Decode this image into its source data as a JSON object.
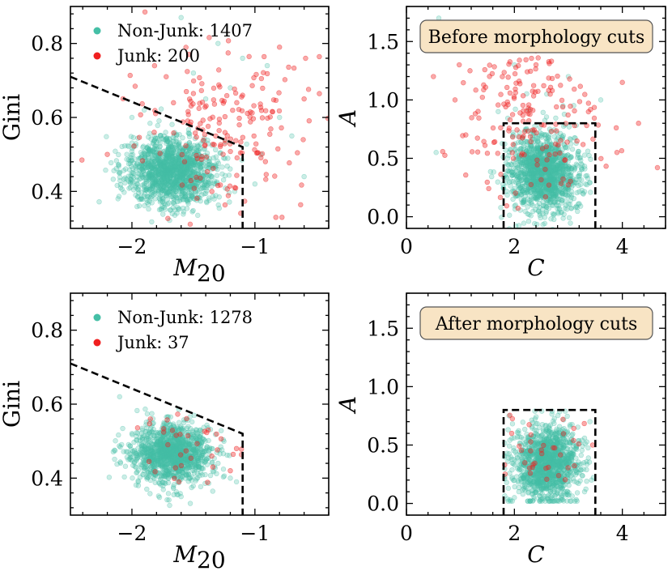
{
  "colors": {
    "non_junk": "#45bfa6",
    "junk": "#f02020",
    "badge_fill": "#f8e4c4",
    "badge_stroke": "#555555",
    "cut_line": "#000000"
  },
  "chart_data": [
    {
      "id": "top-left",
      "type": "scatter",
      "xlabel": "M_20",
      "xlabel_base": "M",
      "xlabel_sub": "20",
      "ylabel": "Gini",
      "xlim": [
        -2.5,
        -0.4
      ],
      "ylim": [
        0.3,
        0.9
      ],
      "xticks": [
        -2,
        -1
      ],
      "xtick_labels": [
        "−2",
        "−1"
      ],
      "yticks": [
        0.4,
        0.6,
        0.8
      ],
      "ytick_labels": [
        "0.4",
        "0.6",
        "0.8"
      ],
      "legend": {
        "position": "upper-left",
        "entries": [
          {
            "label": "Non-Junk: 1407",
            "series": "Non-Junk"
          },
          {
            "label": "Junk: 200",
            "series": "Junk"
          }
        ]
      },
      "cut_boundary": {
        "x": [
          -2.5,
          -1.1,
          -1.1
        ],
        "y": [
          0.71,
          0.52,
          0.3
        ]
      },
      "series": [
        {
          "name": "Non-Junk",
          "count": 1407,
          "color": "non_junk",
          "center": [
            -1.68,
            0.455
          ],
          "spread": [
            0.18,
            0.045
          ],
          "outlier_points": [
            [
              -1.6,
              0.87
            ],
            [
              -1.3,
              0.8
            ],
            [
              -1.1,
              0.76
            ],
            [
              -0.9,
              0.74
            ],
            [
              -0.8,
              0.6
            ],
            [
              -0.7,
              0.55
            ],
            [
              -0.6,
              0.44
            ],
            [
              -1.9,
              0.62
            ],
            [
              -2.0,
              0.6
            ],
            [
              -1.5,
              0.72
            ],
            [
              -1.2,
              0.68
            ],
            [
              -0.95,
              0.5
            ],
            [
              -1.0,
              0.42
            ],
            [
              -1.4,
              0.65
            ]
          ]
        },
        {
          "name": "Junk",
          "count": 200,
          "color": "junk",
          "center": [
            -1.2,
            0.58
          ],
          "spread": [
            0.35,
            0.12
          ],
          "outlier_points": [
            [
              -2.2,
              0.5
            ],
            [
              -0.78,
              0.33
            ],
            [
              -0.83,
              0.33
            ],
            [
              -1.35,
              0.4
            ],
            [
              -0.6,
              0.65
            ],
            [
              -0.8,
              0.79
            ],
            [
              -1.1,
              0.66
            ]
          ]
        }
      ]
    },
    {
      "id": "top-right",
      "type": "scatter",
      "xlabel": "C",
      "ylabel": "A",
      "xlim": [
        0,
        4.8
      ],
      "ylim": [
        -0.1,
        1.8
      ],
      "xticks": [
        0,
        2,
        4
      ],
      "xtick_labels": [
        "0",
        "2",
        "4"
      ],
      "yticks": [
        0.0,
        0.5,
        1.0,
        1.5
      ],
      "ytick_labels": [
        "0.0",
        "0.5",
        "1.0",
        "1.5"
      ],
      "annotation": "Before morphology cuts",
      "cut_boundary": {
        "x": [
          1.8,
          1.8,
          3.5,
          3.5
        ],
        "y": [
          -0.1,
          0.8,
          0.8,
          -0.1
        ]
      },
      "series": [
        {
          "name": "Non-Junk",
          "count": 1407,
          "color": "non_junk",
          "center": [
            2.55,
            0.38
          ],
          "spread": [
            0.32,
            0.17
          ],
          "outlier_points": [
            [
              0.55,
              0.55
            ],
            [
              0.6,
              1.7
            ],
            [
              1.0,
              1.6
            ],
            [
              2.5,
              1.55
            ],
            [
              2.0,
              1.3
            ],
            [
              3.0,
              1.2
            ],
            [
              3.6,
              1.0
            ],
            [
              1.7,
              0.9
            ],
            [
              2.6,
              1.05
            ],
            [
              2.9,
              0.95
            ]
          ]
        },
        {
          "name": "Junk",
          "count": 200,
          "color": "junk",
          "center": [
            2.25,
            0.9
          ],
          "spread": [
            0.65,
            0.35
          ],
          "outlier_points": [
            [
              0.4,
              1.5
            ],
            [
              0.5,
              1.2
            ],
            [
              4.65,
              0.42
            ],
            [
              4.3,
              0.8
            ],
            [
              4.0,
              1.15
            ],
            [
              3.9,
              0.55
            ],
            [
              0.9,
              1.0
            ],
            [
              1.1,
              0.7
            ]
          ]
        }
      ]
    },
    {
      "id": "bottom-left",
      "type": "scatter",
      "xlabel": "M_20",
      "xlabel_base": "M",
      "xlabel_sub": "20",
      "ylabel": "Gini",
      "xlim": [
        -2.5,
        -0.4
      ],
      "ylim": [
        0.3,
        0.9
      ],
      "xticks": [
        -2,
        -1
      ],
      "xtick_labels": [
        "−2",
        "−1"
      ],
      "yticks": [
        0.4,
        0.6,
        0.8
      ],
      "ytick_labels": [
        "0.4",
        "0.6",
        "0.8"
      ],
      "legend": {
        "position": "upper-left",
        "entries": [
          {
            "label": "Non-Junk: 1278",
            "series": "Non-Junk"
          },
          {
            "label": "Junk: 37",
            "series": "Junk"
          }
        ]
      },
      "cut_boundary": {
        "x": [
          -2.5,
          -1.1,
          -1.1
        ],
        "y": [
          0.71,
          0.52,
          0.3
        ]
      },
      "series": [
        {
          "name": "Non-Junk",
          "count": 1278,
          "color": "non_junk",
          "center": [
            -1.68,
            0.465
          ],
          "spread": [
            0.16,
            0.04
          ],
          "outlier_points": [
            [
              -2.1,
              0.62
            ],
            [
              -1.2,
              0.4
            ],
            [
              -1.15,
              0.39
            ],
            [
              -1.6,
              0.35
            ],
            [
              -1.3,
              0.44
            ]
          ]
        },
        {
          "name": "Junk",
          "count": 37,
          "color": "junk",
          "center": [
            -1.55,
            0.48
          ],
          "spread": [
            0.2,
            0.05
          ],
          "outlier_points": [
            [
              -1.85,
              0.56
            ],
            [
              -1.2,
              0.42
            ],
            [
              -1.15,
              0.48
            ]
          ]
        }
      ]
    },
    {
      "id": "bottom-right",
      "type": "scatter",
      "xlabel": "C",
      "ylabel": "A",
      "xlim": [
        0,
        4.8
      ],
      "ylim": [
        -0.1,
        1.8
      ],
      "xticks": [
        0,
        2,
        4
      ],
      "xtick_labels": [
        "0",
        "2",
        "4"
      ],
      "yticks": [
        0.0,
        0.5,
        1.0,
        1.5
      ],
      "ytick_labels": [
        "0.0",
        "0.5",
        "1.0",
        "1.5"
      ],
      "annotation": "After morphology cuts",
      "cut_boundary": {
        "x": [
          1.8,
          1.8,
          3.5,
          3.5
        ],
        "y": [
          -0.1,
          0.8,
          0.8,
          -0.1
        ]
      },
      "series": [
        {
          "name": "Non-Junk",
          "count": 1278,
          "color": "non_junk",
          "center": [
            2.6,
            0.35
          ],
          "spread": [
            0.3,
            0.16
          ],
          "outlier_points": [
            [
              1.9,
              0.75
            ],
            [
              3.4,
              0.7
            ],
            [
              3.3,
              0.1
            ],
            [
              2.0,
              0.05
            ]
          ]
        },
        {
          "name": "Junk",
          "count": 37,
          "color": "junk",
          "center": [
            2.55,
            0.45
          ],
          "spread": [
            0.35,
            0.15
          ],
          "outlier_points": [
            [
              1.95,
              0.6
            ],
            [
              3.45,
              0.5
            ],
            [
              2.9,
              0.72
            ]
          ]
        }
      ]
    }
  ]
}
